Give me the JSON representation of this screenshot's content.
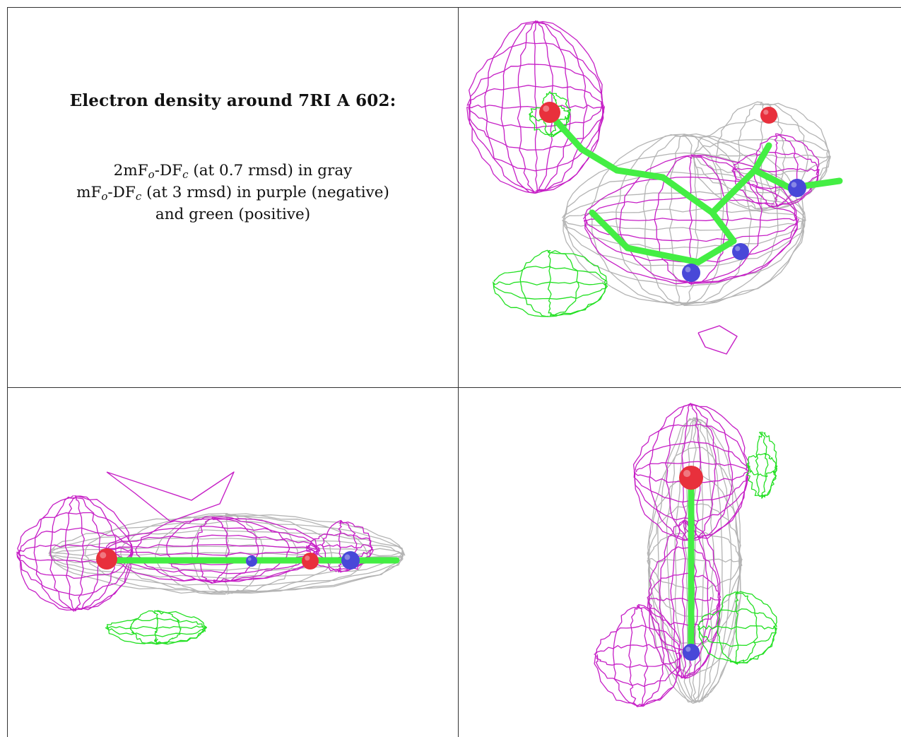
{
  "caption": {
    "title": "Electron density around 7RI A 602:",
    "legend": [
      {
        "pre": "2mF",
        "sub1": "o",
        "mid": "-DF",
        "sub2": "c",
        "post": " (at 0.7 rmsd) in gray"
      },
      {
        "pre": "mF",
        "sub1": "o",
        "mid": "-DF",
        "sub2": "c",
        "post": " (at 3 rmsd) in purple (negative)"
      },
      {
        "pre": "",
        "sub1": "",
        "mid": "",
        "sub2": "",
        "post": "and green (positive)"
      }
    ]
  },
  "colors": {
    "mesh_2fofc": "#b4b4b4",
    "mesh_negative": "#c61fc6",
    "mesh_positive": "#22e022",
    "carbon": "#44ee44",
    "oxygen": "#e8303c",
    "nitrogen": "#4848d8",
    "border": "#333333"
  },
  "views": [
    "view-top-right",
    "view-bottom-left",
    "view-bottom-right"
  ]
}
